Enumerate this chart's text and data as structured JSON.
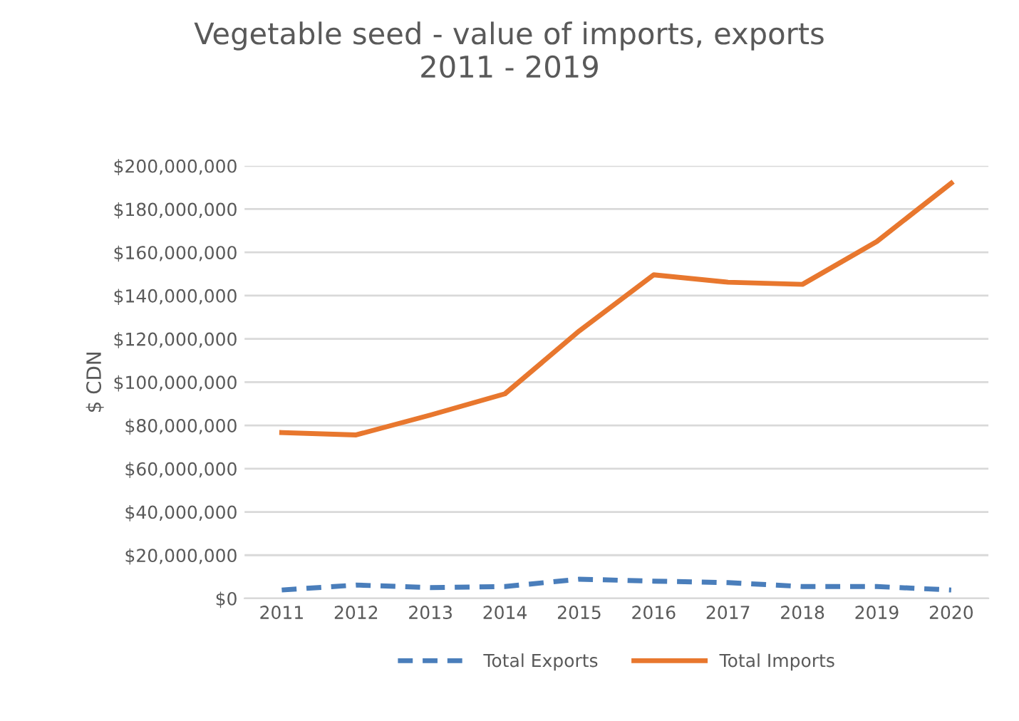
{
  "chart_data": {
    "type": "line",
    "title": "Vegetable seed - value of imports, exports\n2011 - 2019",
    "ylabel": "$ CDN",
    "categories": [
      "2011",
      "2012",
      "2013",
      "2014",
      "2015",
      "2016",
      "2017",
      "2018",
      "2019",
      "2020"
    ],
    "series": [
      {
        "name": "Total Exports",
        "color": "#4a7ebb",
        "line_style": "dashed",
        "values": [
          3900000,
          6200000,
          5000000,
          5500000,
          8900000,
          8000000,
          7300000,
          5500000,
          5500000,
          3900000
        ]
      },
      {
        "name": "Total Imports",
        "color": "#e8772e",
        "line_style": "solid",
        "values": [
          76700000,
          75600000,
          84800000,
          94600000,
          123700000,
          149600000,
          146200000,
          145200000,
          165000000,
          192000000
        ]
      }
    ],
    "ylim": [
      0,
      200000000
    ],
    "yticks": [
      {
        "value": 0,
        "label": "$0"
      },
      {
        "value": 20000000,
        "label": "$20,000,000"
      },
      {
        "value": 40000000,
        "label": "$40,000,000"
      },
      {
        "value": 60000000,
        "label": "$60,000,000"
      },
      {
        "value": 80000000,
        "label": "$80,000,000"
      },
      {
        "value": 100000000,
        "label": "$100,000,000"
      },
      {
        "value": 120000000,
        "label": "$120,000,000"
      },
      {
        "value": 140000000,
        "label": "$140,000,000"
      },
      {
        "value": 160000000,
        "label": "$160,000,000"
      },
      {
        "value": 180000000,
        "label": "$180,000,000"
      },
      {
        "value": 200000000,
        "label": "$200,000,000"
      }
    ],
    "grid": "y",
    "legend": "bottom",
    "marker": "none"
  }
}
